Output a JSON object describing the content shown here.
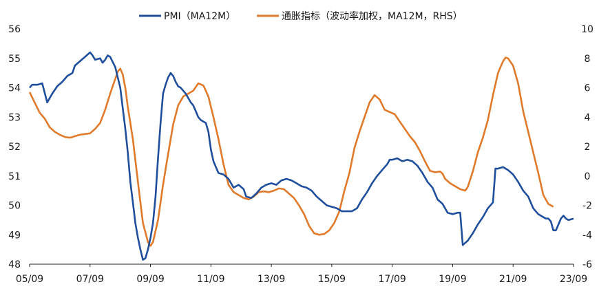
{
  "chart_data": {
    "type": "line",
    "x_range": [
      "2005-09",
      "2023-09"
    ],
    "x_ticks": [
      "05/09",
      "07/09",
      "09/09",
      "11/09",
      "13/09",
      "15/09",
      "17/09",
      "19/09",
      "21/09",
      "23/09"
    ],
    "y_left": {
      "min": 48,
      "max": 56,
      "ticks": [
        "48",
        "49",
        "50",
        "51",
        "52",
        "53",
        "54",
        "55",
        "56"
      ]
    },
    "y_right": {
      "min": -6,
      "max": 10,
      "ticks": [
        "-6",
        "-4",
        "-2",
        "0",
        "2",
        "4",
        "6",
        "8",
        "10"
      ]
    },
    "legend_position": "top-center",
    "grid": false,
    "series": [
      {
        "name": "PMI（MA12M）",
        "axis": "left",
        "color": "#1f4e9c",
        "points": [
          [
            "2005-09",
            54.0
          ],
          [
            "2005-10",
            54.1
          ],
          [
            "2005-12",
            54.1
          ],
          [
            "2006-02",
            54.15
          ],
          [
            "2006-04",
            53.5
          ],
          [
            "2006-06",
            53.8
          ],
          [
            "2006-08",
            54.05
          ],
          [
            "2006-10",
            54.2
          ],
          [
            "2006-12",
            54.4
          ],
          [
            "2007-02",
            54.5
          ],
          [
            "2007-03",
            54.75
          ],
          [
            "2007-05",
            54.9
          ],
          [
            "2007-07",
            55.05
          ],
          [
            "2007-09",
            55.2
          ],
          [
            "2007-10",
            55.1
          ],
          [
            "2007-11",
            54.95
          ],
          [
            "2008-01",
            55.0
          ],
          [
            "2008-02",
            54.85
          ],
          [
            "2008-03",
            54.95
          ],
          [
            "2008-04",
            55.1
          ],
          [
            "2008-05",
            55.05
          ],
          [
            "2008-07",
            54.7
          ],
          [
            "2008-09",
            54.0
          ],
          [
            "2008-10",
            53.3
          ],
          [
            "2008-11",
            52.6
          ],
          [
            "2008-12",
            51.8
          ],
          [
            "2009-01",
            50.8
          ],
          [
            "2009-02",
            50.1
          ],
          [
            "2009-03",
            49.4
          ],
          [
            "2009-04",
            48.9
          ],
          [
            "2009-05",
            48.5
          ],
          [
            "2009-06",
            48.15
          ],
          [
            "2009-07",
            48.2
          ],
          [
            "2009-08",
            48.5
          ],
          [
            "2009-09",
            48.9
          ],
          [
            "2009-10",
            49.4
          ],
          [
            "2009-11",
            50.3
          ],
          [
            "2009-12",
            51.6
          ],
          [
            "2010-01",
            52.8
          ],
          [
            "2010-02",
            53.8
          ],
          [
            "2010-03",
            54.1
          ],
          [
            "2010-04",
            54.35
          ],
          [
            "2010-05",
            54.5
          ],
          [
            "2010-06",
            54.4
          ],
          [
            "2010-07",
            54.2
          ],
          [
            "2010-08",
            54.05
          ],
          [
            "2010-09",
            54.0
          ],
          [
            "2010-10",
            53.9
          ],
          [
            "2010-11",
            53.8
          ],
          [
            "2010-12",
            53.65
          ],
          [
            "2011-01",
            53.5
          ],
          [
            "2011-02",
            53.4
          ],
          [
            "2011-03",
            53.2
          ],
          [
            "2011-04",
            53.0
          ],
          [
            "2011-05",
            52.9
          ],
          [
            "2011-06",
            52.85
          ],
          [
            "2011-07",
            52.8
          ],
          [
            "2011-08",
            52.5
          ],
          [
            "2011-09",
            51.9
          ],
          [
            "2011-10",
            51.5
          ],
          [
            "2011-11",
            51.3
          ],
          [
            "2011-12",
            51.1
          ],
          [
            "2012-02",
            51.05
          ],
          [
            "2012-04",
            50.9
          ],
          [
            "2012-06",
            50.6
          ],
          [
            "2012-08",
            50.7
          ],
          [
            "2012-10",
            50.55
          ],
          [
            "2012-11",
            50.3
          ],
          [
            "2013-01",
            50.25
          ],
          [
            "2013-03",
            50.4
          ],
          [
            "2013-05",
            50.6
          ],
          [
            "2013-07",
            50.7
          ],
          [
            "2013-09",
            50.75
          ],
          [
            "2013-11",
            50.7
          ],
          [
            "2014-01",
            50.85
          ],
          [
            "2014-03",
            50.9
          ],
          [
            "2014-05",
            50.85
          ],
          [
            "2014-07",
            50.75
          ],
          [
            "2014-09",
            50.65
          ],
          [
            "2014-11",
            50.6
          ],
          [
            "2015-01",
            50.5
          ],
          [
            "2015-03",
            50.3
          ],
          [
            "2015-05",
            50.15
          ],
          [
            "2015-07",
            50.0
          ],
          [
            "2015-09",
            49.95
          ],
          [
            "2015-11",
            49.9
          ],
          [
            "2016-01",
            49.8
          ],
          [
            "2016-03",
            49.8
          ],
          [
            "2016-05",
            49.8
          ],
          [
            "2016-07",
            49.9
          ],
          [
            "2016-09",
            50.2
          ],
          [
            "2016-11",
            50.45
          ],
          [
            "2017-01",
            50.75
          ],
          [
            "2017-03",
            51.0
          ],
          [
            "2017-05",
            51.2
          ],
          [
            "2017-07",
            51.4
          ],
          [
            "2017-08",
            51.55
          ],
          [
            "2017-09",
            51.55
          ],
          [
            "2017-11",
            51.6
          ],
          [
            "2018-01",
            51.5
          ],
          [
            "2018-03",
            51.55
          ],
          [
            "2018-05",
            51.5
          ],
          [
            "2018-07",
            51.35
          ],
          [
            "2018-09",
            51.1
          ],
          [
            "2018-11",
            50.8
          ],
          [
            "2019-01",
            50.6
          ],
          [
            "2019-03",
            50.2
          ],
          [
            "2019-05",
            50.05
          ],
          [
            "2019-07",
            49.75
          ],
          [
            "2019-09",
            49.7
          ],
          [
            "2019-11",
            49.75
          ],
          [
            "2019-12",
            49.75
          ],
          [
            "2020-01",
            48.65
          ],
          [
            "2020-03",
            48.8
          ],
          [
            "2020-05",
            49.05
          ],
          [
            "2020-07",
            49.35
          ],
          [
            "2020-09",
            49.6
          ],
          [
            "2020-11",
            49.9
          ],
          [
            "2021-01",
            50.1
          ],
          [
            "2021-02",
            51.25
          ],
          [
            "2021-03",
            51.25
          ],
          [
            "2021-05",
            51.3
          ],
          [
            "2021-07",
            51.2
          ],
          [
            "2021-09",
            51.05
          ],
          [
            "2021-11",
            50.8
          ],
          [
            "2022-01",
            50.5
          ],
          [
            "2022-03",
            50.3
          ],
          [
            "2022-05",
            49.9
          ],
          [
            "2022-07",
            49.7
          ],
          [
            "2022-09",
            49.6
          ],
          [
            "2022-10",
            49.55
          ],
          [
            "2022-11",
            49.55
          ],
          [
            "2022-12",
            49.45
          ],
          [
            "2023-01",
            49.15
          ],
          [
            "2023-02",
            49.15
          ],
          [
            "2023-03",
            49.35
          ],
          [
            "2023-04",
            49.55
          ],
          [
            "2023-05",
            49.65
          ],
          [
            "2023-06",
            49.55
          ],
          [
            "2023-07",
            49.5
          ],
          [
            "2023-09",
            49.55
          ]
        ]
      },
      {
        "name": "通胀指标（波动率加权，MA12M，RHS）",
        "axis": "right",
        "color": "#e07a2a",
        "points": [
          [
            "2005-09",
            5.7
          ],
          [
            "2005-11",
            5.0
          ],
          [
            "2006-01",
            4.3
          ],
          [
            "2006-03",
            3.9
          ],
          [
            "2006-05",
            3.3
          ],
          [
            "2006-07",
            3.0
          ],
          [
            "2006-09",
            2.8
          ],
          [
            "2006-11",
            2.65
          ],
          [
            "2007-01",
            2.6
          ],
          [
            "2007-03",
            2.7
          ],
          [
            "2007-05",
            2.8
          ],
          [
            "2007-07",
            2.85
          ],
          [
            "2007-09",
            2.9
          ],
          [
            "2007-11",
            3.2
          ],
          [
            "2008-01",
            3.6
          ],
          [
            "2008-03",
            4.5
          ],
          [
            "2008-05",
            5.6
          ],
          [
            "2008-07",
            6.6
          ],
          [
            "2008-08",
            7.1
          ],
          [
            "2008-09",
            7.3
          ],
          [
            "2008-10",
            6.9
          ],
          [
            "2008-11",
            6.0
          ],
          [
            "2008-12",
            4.7
          ],
          [
            "2009-02",
            2.5
          ],
          [
            "2009-04",
            -0.4
          ],
          [
            "2009-06",
            -3.2
          ],
          [
            "2009-08",
            -4.5
          ],
          [
            "2009-09",
            -4.75
          ],
          [
            "2009-10",
            -4.5
          ],
          [
            "2009-12",
            -3.0
          ],
          [
            "2010-02",
            -0.6
          ],
          [
            "2010-04",
            1.5
          ],
          [
            "2010-06",
            3.5
          ],
          [
            "2010-08",
            4.8
          ],
          [
            "2010-10",
            5.4
          ],
          [
            "2010-12",
            5.6
          ],
          [
            "2011-02",
            5.8
          ],
          [
            "2011-04",
            6.3
          ],
          [
            "2011-06",
            6.15
          ],
          [
            "2011-08",
            5.4
          ],
          [
            "2011-10",
            4.0
          ],
          [
            "2011-12",
            2.5
          ],
          [
            "2012-02",
            0.8
          ],
          [
            "2012-04",
            -0.6
          ],
          [
            "2012-06",
            -1.1
          ],
          [
            "2012-08",
            -1.3
          ],
          [
            "2012-10",
            -1.5
          ],
          [
            "2012-12",
            -1.6
          ],
          [
            "2013-02",
            -1.4
          ],
          [
            "2013-04",
            -1.1
          ],
          [
            "2013-06",
            -1.05
          ],
          [
            "2013-08",
            -1.1
          ],
          [
            "2013-10",
            -1.0
          ],
          [
            "2013-12",
            -0.85
          ],
          [
            "2014-02",
            -0.9
          ],
          [
            "2014-04",
            -1.2
          ],
          [
            "2014-06",
            -1.5
          ],
          [
            "2014-08",
            -2.0
          ],
          [
            "2014-10",
            -2.6
          ],
          [
            "2014-12",
            -3.4
          ],
          [
            "2015-02",
            -3.9
          ],
          [
            "2015-04",
            -4.0
          ],
          [
            "2015-06",
            -3.95
          ],
          [
            "2015-08",
            -3.7
          ],
          [
            "2015-10",
            -3.2
          ],
          [
            "2015-12",
            -2.4
          ],
          [
            "2016-02",
            -1.0
          ],
          [
            "2016-04",
            0.2
          ],
          [
            "2016-06",
            1.9
          ],
          [
            "2016-08",
            3.0
          ],
          [
            "2016-10",
            4.0
          ],
          [
            "2016-12",
            5.0
          ],
          [
            "2017-02",
            5.5
          ],
          [
            "2017-04",
            5.2
          ],
          [
            "2017-06",
            4.5
          ],
          [
            "2017-08",
            4.35
          ],
          [
            "2017-10",
            4.2
          ],
          [
            "2017-12",
            3.7
          ],
          [
            "2018-02",
            3.2
          ],
          [
            "2018-04",
            2.7
          ],
          [
            "2018-06",
            2.3
          ],
          [
            "2018-08",
            1.7
          ],
          [
            "2018-10",
            1.0
          ],
          [
            "2018-12",
            0.35
          ],
          [
            "2019-02",
            0.25
          ],
          [
            "2019-04",
            0.3
          ],
          [
            "2019-05",
            0.15
          ],
          [
            "2019-06",
            -0.2
          ],
          [
            "2019-08",
            -0.5
          ],
          [
            "2019-10",
            -0.7
          ],
          [
            "2019-12",
            -0.9
          ],
          [
            "2020-02",
            -1.0
          ],
          [
            "2020-03",
            -0.75
          ],
          [
            "2020-05",
            0.3
          ],
          [
            "2020-07",
            1.6
          ],
          [
            "2020-09",
            2.6
          ],
          [
            "2020-11",
            3.8
          ],
          [
            "2021-01",
            5.5
          ],
          [
            "2021-03",
            7.0
          ],
          [
            "2021-05",
            7.8
          ],
          [
            "2021-06",
            8.05
          ],
          [
            "2021-07",
            8.0
          ],
          [
            "2021-09",
            7.5
          ],
          [
            "2021-11",
            6.3
          ],
          [
            "2022-01",
            4.4
          ],
          [
            "2022-03",
            3.0
          ],
          [
            "2022-05",
            1.6
          ],
          [
            "2022-07",
            0.2
          ],
          [
            "2022-09",
            -1.3
          ],
          [
            "2022-11",
            -1.9
          ],
          [
            "2023-01",
            -2.1
          ]
        ]
      }
    ]
  }
}
